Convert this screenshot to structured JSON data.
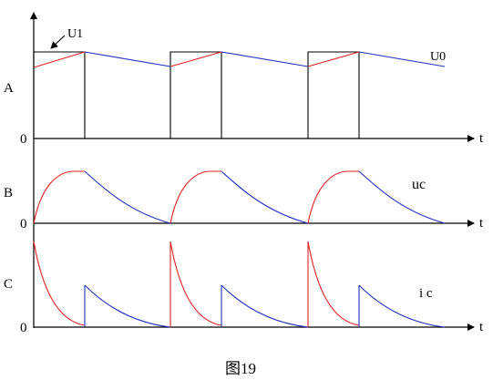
{
  "panels": [
    {
      "key": "A",
      "label": "A"
    },
    {
      "key": "B",
      "label": "B"
    },
    {
      "key": "C",
      "label": "C"
    }
  ],
  "axis": {
    "origin_label": "0",
    "time_label": "t"
  },
  "signals": {
    "u1": "U1",
    "u0": "U0",
    "uc": "uc",
    "ic": "i c"
  },
  "caption": "图19",
  "colors": {
    "charge": "#e52222",
    "discharge": "#1f2fbf",
    "square": "#000000"
  }
}
